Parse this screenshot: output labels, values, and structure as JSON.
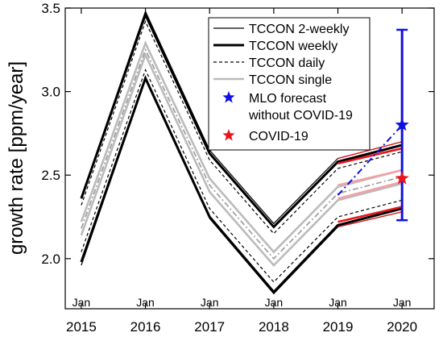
{
  "chart_data": {
    "type": "line",
    "title": "",
    "xlabel": "",
    "ylabel": "growth rate [ppm/year]",
    "xlim": [
      2014.75,
      2020.5
    ],
    "ylim": [
      1.7,
      3.5
    ],
    "x_ticks": [
      2015,
      2016,
      2017,
      2018,
      2019,
      2020
    ],
    "x_tick_labels": [
      "2015",
      "2016",
      "2017",
      "2018",
      "2019",
      "2020"
    ],
    "x_marker_label": "Jan",
    "y_ticks": [
      2.0,
      2.5,
      3.0,
      3.5
    ],
    "y_tick_labels": [
      "2.0",
      "2.5",
      "3.0",
      "3.5"
    ],
    "grid": false,
    "legend_position": "top-right",
    "x": [
      2015,
      2016,
      2017,
      2018,
      2019,
      2020
    ],
    "series": [
      {
        "name": "TCCON 2-weekly",
        "style": "thin-solid",
        "color": "#000000",
        "band": [
          [
            2.37,
            1.96
          ],
          [
            3.48,
            3.07
          ],
          [
            2.65,
            2.24
          ],
          [
            2.21,
            1.79
          ],
          [
            2.6,
            2.19
          ],
          [
            2.7,
            2.28
          ]
        ]
      },
      {
        "name": "TCCON weekly",
        "style": "thick-solid",
        "color": "#000000",
        "band": [
          [
            2.36,
            1.98
          ],
          [
            3.46,
            3.08
          ],
          [
            2.63,
            2.25
          ],
          [
            2.19,
            1.8
          ],
          [
            2.58,
            2.2
          ],
          [
            2.68,
            2.3
          ]
        ]
      },
      {
        "name": "TCCON daily",
        "style": "dashed",
        "color": "#000000",
        "band": [
          [
            2.32,
            2.04
          ],
          [
            3.42,
            3.13
          ],
          [
            2.59,
            2.3
          ],
          [
            2.15,
            1.86
          ],
          [
            2.54,
            2.25
          ],
          [
            2.64,
            2.35
          ]
        ]
      },
      {
        "name": "TCCON single",
        "style": "gray-solid",
        "color": "#bbbbbb",
        "band": [
          [
            2.22,
            2.14
          ],
          [
            3.29,
            3.22
          ],
          [
            2.48,
            2.4
          ],
          [
            2.04,
            1.96
          ],
          [
            2.43,
            2.35
          ],
          [
            2.53,
            2.45
          ]
        ]
      }
    ],
    "gray_center": {
      "color": "#999999",
      "values": [
        2.18,
        3.25,
        2.44,
        2.0,
        2.39,
        2.49
      ]
    },
    "covid_projection": {
      "x": [
        2019,
        2020
      ],
      "outer_lines": [
        [
          2.6,
          2.7
        ],
        [
          2.57,
          2.66
        ],
        [
          2.22,
          2.31
        ],
        [
          2.19,
          2.28
        ]
      ],
      "inner_lines": [
        [
          2.44,
          2.53
        ],
        [
          2.36,
          2.46
        ]
      ],
      "outer_color": "#e8141c",
      "inner_color": "#f4a0a4"
    },
    "mlo_forecast": {
      "name": "MLO forecast without COVID-19",
      "x": 2020,
      "value": 2.8,
      "error_low": 2.23,
      "error_high": 3.37,
      "link_from": [
        2019,
        2.38
      ],
      "color": "#1010e0"
    },
    "covid_point": {
      "name": "COVID-19",
      "x": 2020,
      "value": 2.48,
      "color": "#e8141c"
    },
    "legend": [
      {
        "label": "TCCON 2-weekly",
        "style": "thin-solid"
      },
      {
        "label": "TCCON weekly",
        "style": "thick-solid"
      },
      {
        "label": "TCCON daily",
        "style": "dashed"
      },
      {
        "label": "TCCON single",
        "style": "gray-solid"
      },
      {
        "label": "MLO forecast",
        "label2": "without COVID-19",
        "style": "blue-star"
      },
      {
        "label": "COVID-19",
        "style": "red-star"
      }
    ]
  }
}
